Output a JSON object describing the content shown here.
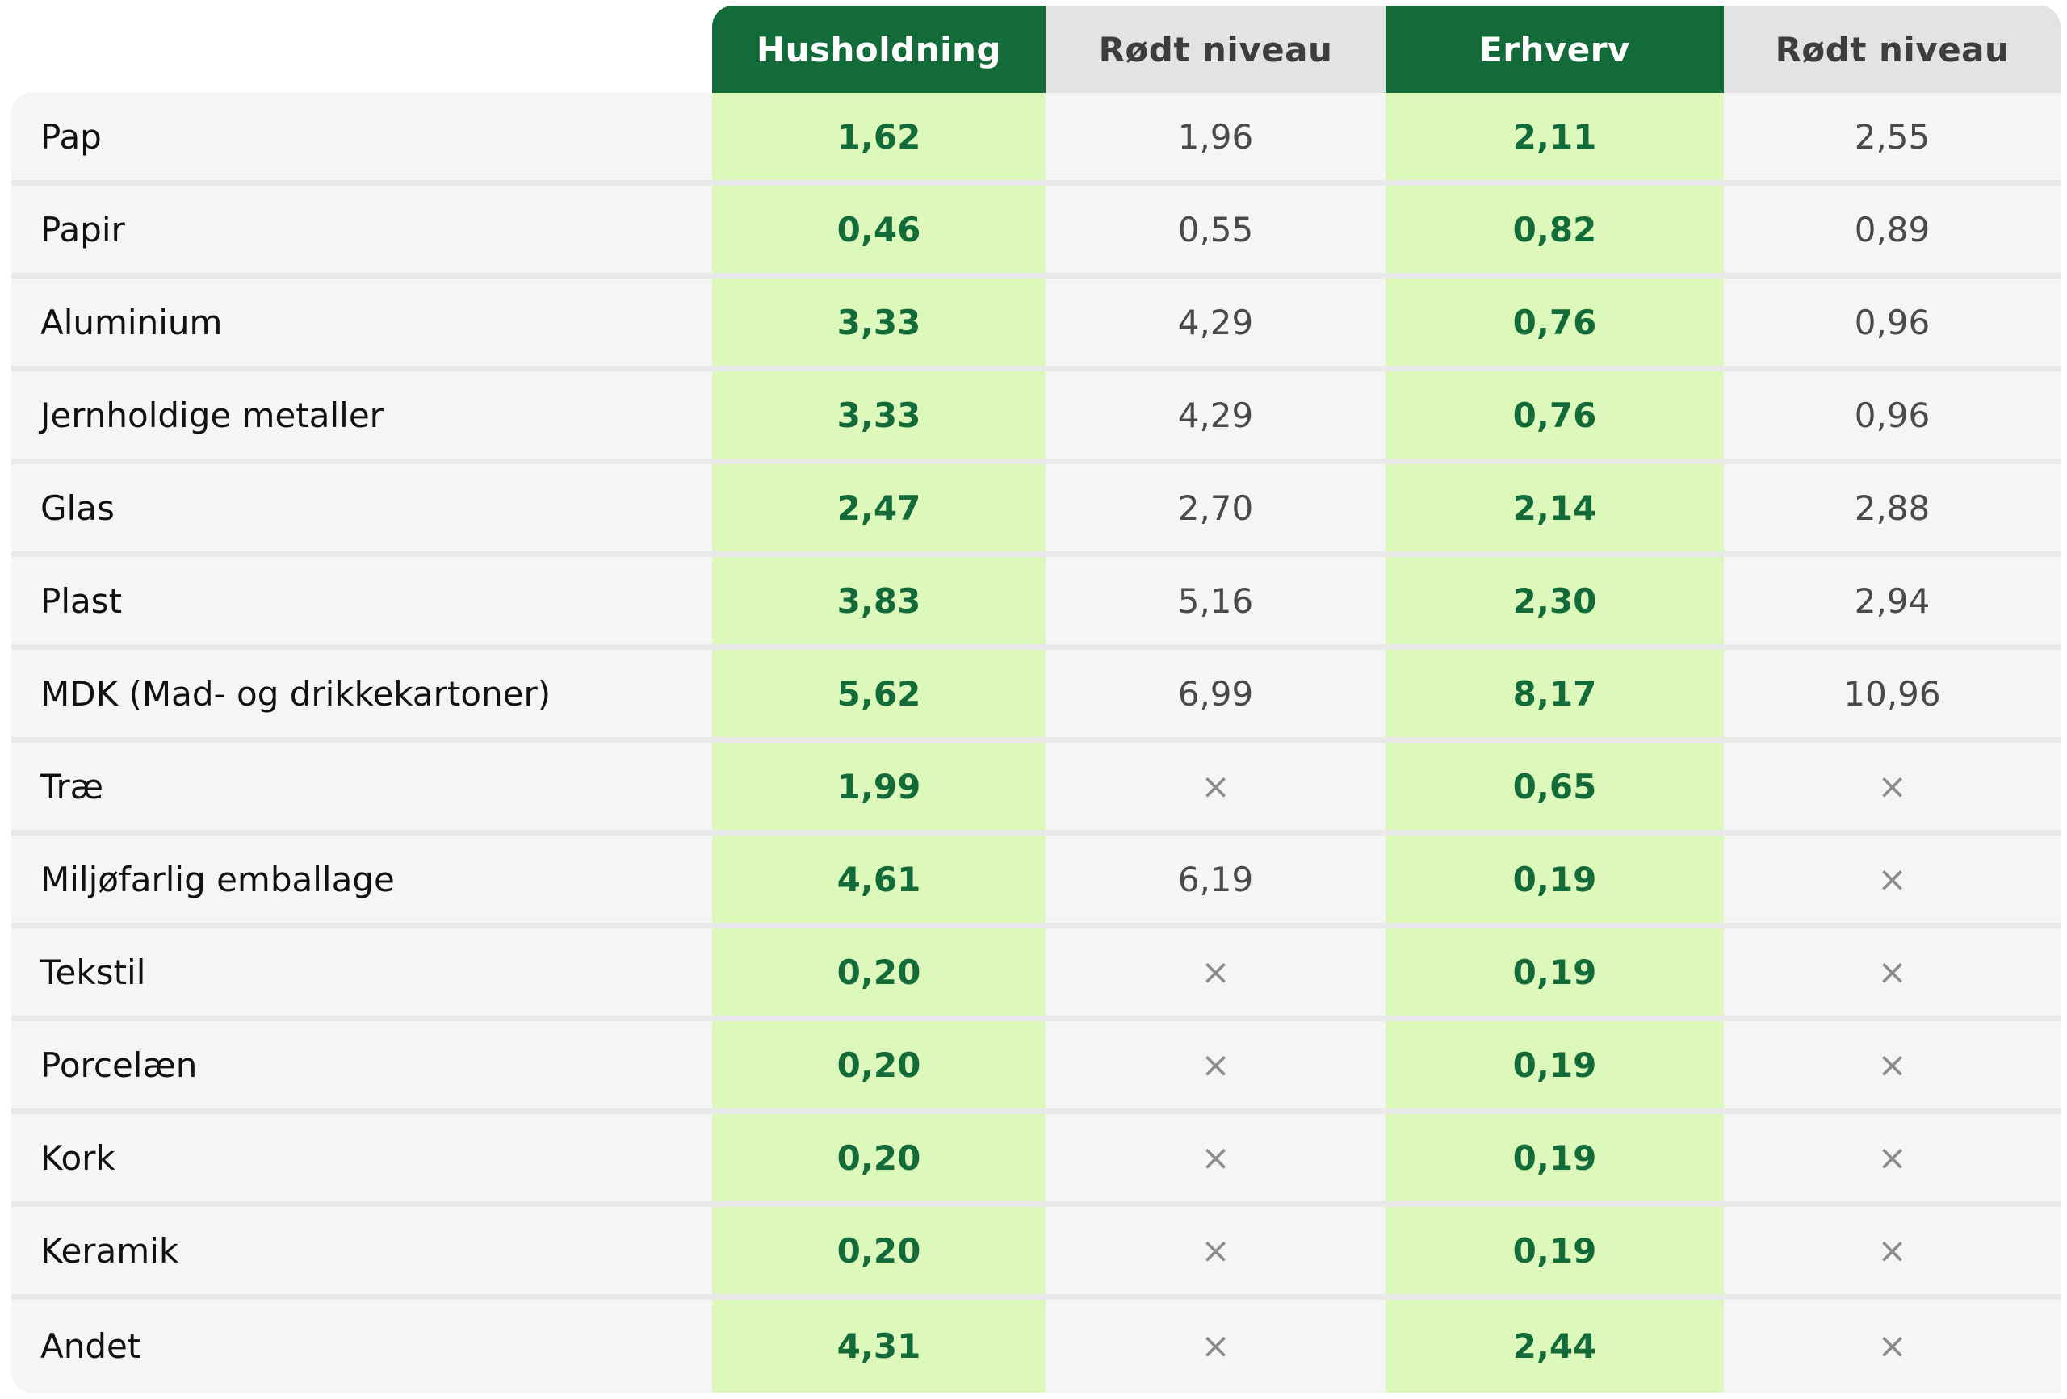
{
  "header": {
    "col_household": "Husholdning",
    "col_red_level_1": "Rødt niveau",
    "col_business": "Erhverv",
    "col_red_level_2": "Rødt niveau"
  },
  "colors": {
    "header_green": "#136b3a",
    "header_grey": "#e3e3e3",
    "highlight_green": "#dcf8bb",
    "row_background": "#f5f5f5"
  },
  "rows": [
    {
      "material": "Pap",
      "household": "1,62",
      "household_red": "1,96",
      "business": "2,11",
      "business_red": "2,55"
    },
    {
      "material": "Papir",
      "household": "0,46",
      "household_red": "0,55",
      "business": "0,82",
      "business_red": "0,89"
    },
    {
      "material": "Aluminium",
      "household": "3,33",
      "household_red": "4,29",
      "business": "0,76",
      "business_red": "0,96"
    },
    {
      "material": "Jernholdige metaller",
      "household": "3,33",
      "household_red": "4,29",
      "business": "0,76",
      "business_red": "0,96"
    },
    {
      "material": "Glas",
      "household": "2,47",
      "household_red": "2,70",
      "business": "2,14",
      "business_red": "2,88"
    },
    {
      "material": "Plast",
      "household": "3,83",
      "household_red": "5,16",
      "business": "2,30",
      "business_red": "2,94"
    },
    {
      "material": "MDK (Mad- og drikkekartoner)",
      "household": "5,62",
      "household_red": "6,99",
      "business": "8,17",
      "business_red": "10,96"
    },
    {
      "material": "Træ",
      "household": "1,99",
      "household_red": "×",
      "business": "0,65",
      "business_red": "×"
    },
    {
      "material": "Miljøfarlig emballage",
      "household": "4,61",
      "household_red": "6,19",
      "business": "0,19",
      "business_red": "×"
    },
    {
      "material": "Tekstil",
      "household": "0,20",
      "household_red": "×",
      "business": "0,19",
      "business_red": "×"
    },
    {
      "material": "Porcelæn",
      "household": "0,20",
      "household_red": "×",
      "business": "0,19",
      "business_red": "×"
    },
    {
      "material": "Kork",
      "household": "0,20",
      "household_red": "×",
      "business": "0,19",
      "business_red": "×"
    },
    {
      "material": "Keramik",
      "household": "0,20",
      "household_red": "×",
      "business": "0,19",
      "business_red": "×"
    },
    {
      "material": "Andet",
      "household": "4,31",
      "household_red": "×",
      "business": "2,44",
      "business_red": "×"
    }
  ]
}
